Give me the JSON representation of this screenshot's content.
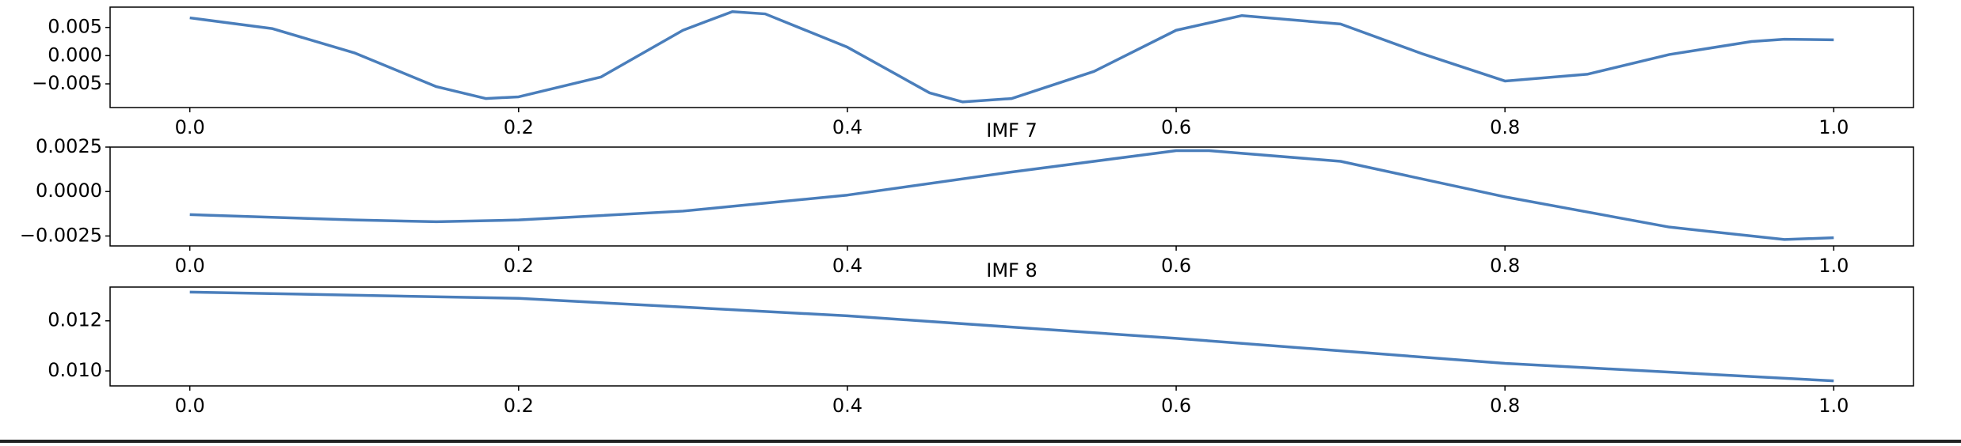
{
  "chart_data": [
    {
      "type": "line",
      "x": [
        0,
        0.05,
        0.1,
        0.15,
        0.18,
        0.2,
        0.25,
        0.3,
        0.33,
        0.35,
        0.4,
        0.45,
        0.47,
        0.5,
        0.55,
        0.6,
        0.64,
        0.7,
        0.75,
        0.8,
        0.85,
        0.9,
        0.95,
        0.97,
        1.0
      ],
      "series": [
        {
          "color": "#4a7ebb",
          "values": [
            0.0067,
            0.0048,
            0.0005,
            -0.0055,
            -0.0076,
            -0.0073,
            -0.0038,
            0.0045,
            0.0078,
            0.0074,
            0.0015,
            -0.0066,
            -0.0082,
            -0.0076,
            -0.0028,
            0.0045,
            0.0071,
            0.0056,
            0.0003,
            -0.0045,
            -0.0033,
            0.0002,
            0.0025,
            0.0029,
            0.0028
          ]
        }
      ],
      "xlim": [
        -0.0485,
        1.0485
      ],
      "ylim": [
        -0.0092,
        0.0086
      ],
      "xticks": [
        {
          "value": 0,
          "label": "0.0"
        },
        0.2,
        0.4,
        0.6,
        0.8,
        {
          "value": 1,
          "label": "1.0"
        }
      ],
      "yticks": [
        {
          "value": -0.005,
          "label": "−0.005"
        },
        {
          "value": 0,
          "label": "0.000"
        },
        0.005
      ]
    },
    {
      "type": "line",
      "title": "IMF 7",
      "x": [
        0,
        0.1,
        0.15,
        0.2,
        0.3,
        0.4,
        0.5,
        0.6,
        0.62,
        0.7,
        0.8,
        0.9,
        0.97,
        1.0
      ],
      "series": [
        {
          "color": "#4a7ebb",
          "values": [
            -0.0013,
            -0.0016,
            -0.0017,
            -0.0016,
            -0.0011,
            -0.0002,
            0.0011,
            0.0023,
            0.0023,
            0.0017,
            -0.0003,
            -0.002,
            -0.0027,
            -0.0026
          ]
        }
      ],
      "xlim": [
        -0.0485,
        1.0485
      ],
      "ylim": [
        -0.00306,
        0.0025
      ],
      "xticks": [
        {
          "value": 0,
          "label": "0.0"
        },
        0.2,
        0.4,
        0.6,
        0.8,
        {
          "value": 1,
          "label": "1.0"
        }
      ],
      "yticks": [
        {
          "value": -0.0025,
          "label": "−0.0025"
        },
        {
          "value": 0,
          "label": "0.0000"
        },
        0.0025
      ]
    },
    {
      "type": "line",
      "title": "IMF 8",
      "x": [
        0,
        0.2,
        0.4,
        0.6,
        0.8,
        1.0
      ],
      "series": [
        {
          "color": "#4a7ebb",
          "values": [
            0.01315,
            0.0129,
            0.0122,
            0.0113,
            0.0103,
            0.0096
          ]
        }
      ],
      "xlim": [
        -0.0485,
        1.0485
      ],
      "ylim": [
        0.0094,
        0.01335
      ],
      "xticks": [
        {
          "value": 0,
          "label": "0.0"
        },
        0.2,
        0.4,
        0.6,
        0.8,
        {
          "value": 1,
          "label": "1.0"
        }
      ],
      "yticks": [
        {
          "value": 0.01,
          "label": "0.010"
        },
        0.012
      ]
    }
  ]
}
